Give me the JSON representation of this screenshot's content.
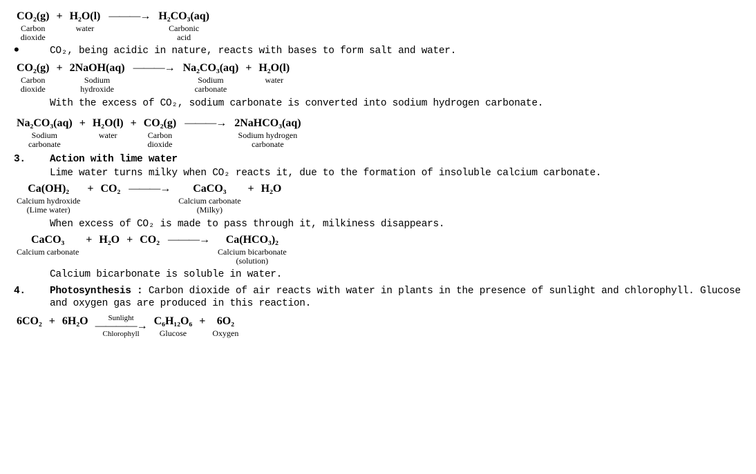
{
  "eq1": {
    "r1": {
      "f": "CO₂(g)",
      "l": "Carbon\ndioxide"
    },
    "op1": "+",
    "r2": {
      "f": "H₂O(l)",
      "l": "water"
    },
    "arrow": "———→",
    "p1": {
      "f": "H₂CO₃(aq)",
      "l": "Carbonic\nacid"
    }
  },
  "bullet1": "CO₂, being acidic in nature, reacts with bases to form salt and water.",
  "eq2": {
    "r1": {
      "f": "CO₂(g)",
      "l": "Carbon\ndioxide"
    },
    "op1": "+",
    "r2": {
      "f": "2NaOH(aq)",
      "l": "Sodium\nhydroxide"
    },
    "arrow": "———→",
    "p1": {
      "f": "Na₂CO₃(aq)",
      "l": "Sodium\ncarbonate"
    },
    "op2": "+",
    "p2": {
      "f": "H₂O(l)",
      "l": "water"
    }
  },
  "line_excess_co2": "With the excess of CO₂, sodium carbonate is converted into sodium hydrogen carbonate.",
  "eq3": {
    "r1": {
      "f": "Na₂CO₃(aq)",
      "l": "Sodium\ncarbonate"
    },
    "op1": "+",
    "r2": {
      "f": "H₂O(l)",
      "l": "water"
    },
    "op2": "+",
    "r3": {
      "f": "CO₂(g)",
      "l": "Carbon\ndioxide"
    },
    "arrow": "———→",
    "p1": {
      "f": "2NaHCO₃(aq)",
      "l": "Sodium hydrogen\ncarbonate"
    }
  },
  "section3_num": "3.",
  "section3_title": "Action with lime water",
  "section3_line1": "Lime water turns milky when CO₂ reacts it, due to the formation of insoluble calcium carbonate.",
  "eq4": {
    "r1": {
      "f": "Ca(OH)₂",
      "l": "Calcium hydroxide\n(Lime water)"
    },
    "op1": "+",
    "r2": {
      "f": "CO₂",
      "l": ""
    },
    "arrow": "———→",
    "p1": {
      "f": "CaCO₃",
      "l": "Calcium carbonate\n(Milky)"
    },
    "op2": "+",
    "p2": {
      "f": "H₂O",
      "l": ""
    }
  },
  "section3_line2": "When excess of CO₂ is made to pass through it, milkiness disappears.",
  "eq5": {
    "r1": {
      "f": "CaCO₃",
      "l": "Calcium carbonate"
    },
    "op1": "+",
    "r2": {
      "f": "H₂O",
      "l": ""
    },
    "op2": "+",
    "r3": {
      "f": "CO₂",
      "l": ""
    },
    "arrow": "———→",
    "p1": {
      "f": "Ca(HCO₃)₂",
      "l": "Calcium bicarbonate\n(solution)"
    }
  },
  "section3_line3": "Calcium bicarbonate is soluble in water.",
  "section4_num": "4.",
  "section4_title": "Photosynthesis :",
  "section4_text": " Carbon dioxide of air reacts with water in plants in the presence of sunlight and chlorophyll. Glucose and oxygen gas are produced in this reaction.",
  "eq6": {
    "r1": {
      "f": "6CO₂",
      "l": ""
    },
    "op1": "+",
    "r2": {
      "f": "6H₂O",
      "l": ""
    },
    "arrow_top": "Sunlight",
    "arrow_mid": "————→",
    "arrow_bot": "Chlorophyll",
    "p1": {
      "f": "C₆H₁₂O₆",
      "l": "Glucose"
    },
    "op2": "+",
    "p2": {
      "f": "6O₂",
      "l": "Oxygen"
    }
  }
}
